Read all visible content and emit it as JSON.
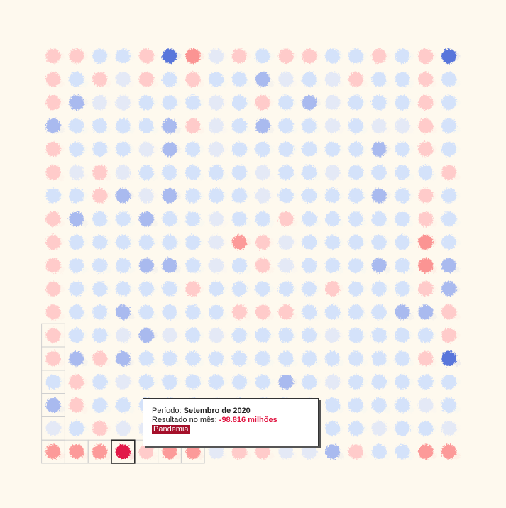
{
  "tooltip": {
    "period_label": "Período: ",
    "period_value": "Setembro de 2020",
    "result_label": "Resultado no mês: ",
    "result_value": "-98.816 milhões",
    "tag": "Pandemia"
  },
  "colors": {
    "background": "#fef9ee",
    "positive_strong": "#3c5fd8",
    "positive_medium": "#8ea6ef",
    "positive_light": "#d2e0fb",
    "negative_light": "#ffc3c3",
    "negative_medium": "#fb8a8a",
    "negative_strong": "#e0123f",
    "highlight_border": "#222222"
  },
  "chart_data": {
    "type": "scatter",
    "layout": "square-spiral",
    "grid": [
      18,
      18
    ],
    "highlighted": {
      "period": "Setembro de 2020",
      "value_millions": -98.816,
      "tag": "Pandemia"
    },
    "levels": {
      "B": "strong surplus",
      "M": "medium surplus",
      "L": "small surplus",
      "l": "very small surplus",
      "p": "small deficit",
      "P": "medium deficit",
      "R": "large deficit",
      "X": "extreme deficit"
    },
    "rows": [
      "ppLLpBRlpLppLLpLpB",
      "pLplpLpLLMlLlpLLpL",
      "pMllLLLlLpLMlLLLpL",
      "MLLLLMplLMLLlLllpL",
      "pLLLlMLlLLLLLLMLpL",
      "plplLLLLLlLLlLLLLp",
      "LLpMlMLLLlLLLLMLpL",
      "pMLLMLLlLLpLLLLLpL",
      "pLLLLLLlPplLLLLLRL",
      "pLLLMMLlLplLLLMLRM",
      "pLLLLLpLLLLLpLLLpM",
      "pLLMLLLLpppLLLLMMp",
      "pLLlMlLlLLLLlLLLLp",
      "pMpMLLLLLLLLLLLLpB",
      "LpLlLLLLLLMLlLLLLL",
      "MpLLLLLLLLLlLLLLlL",
      "lLpllLLlLLPLLLlLLl",
      "PPPXpPPlppllMpLLPP"
    ]
  }
}
